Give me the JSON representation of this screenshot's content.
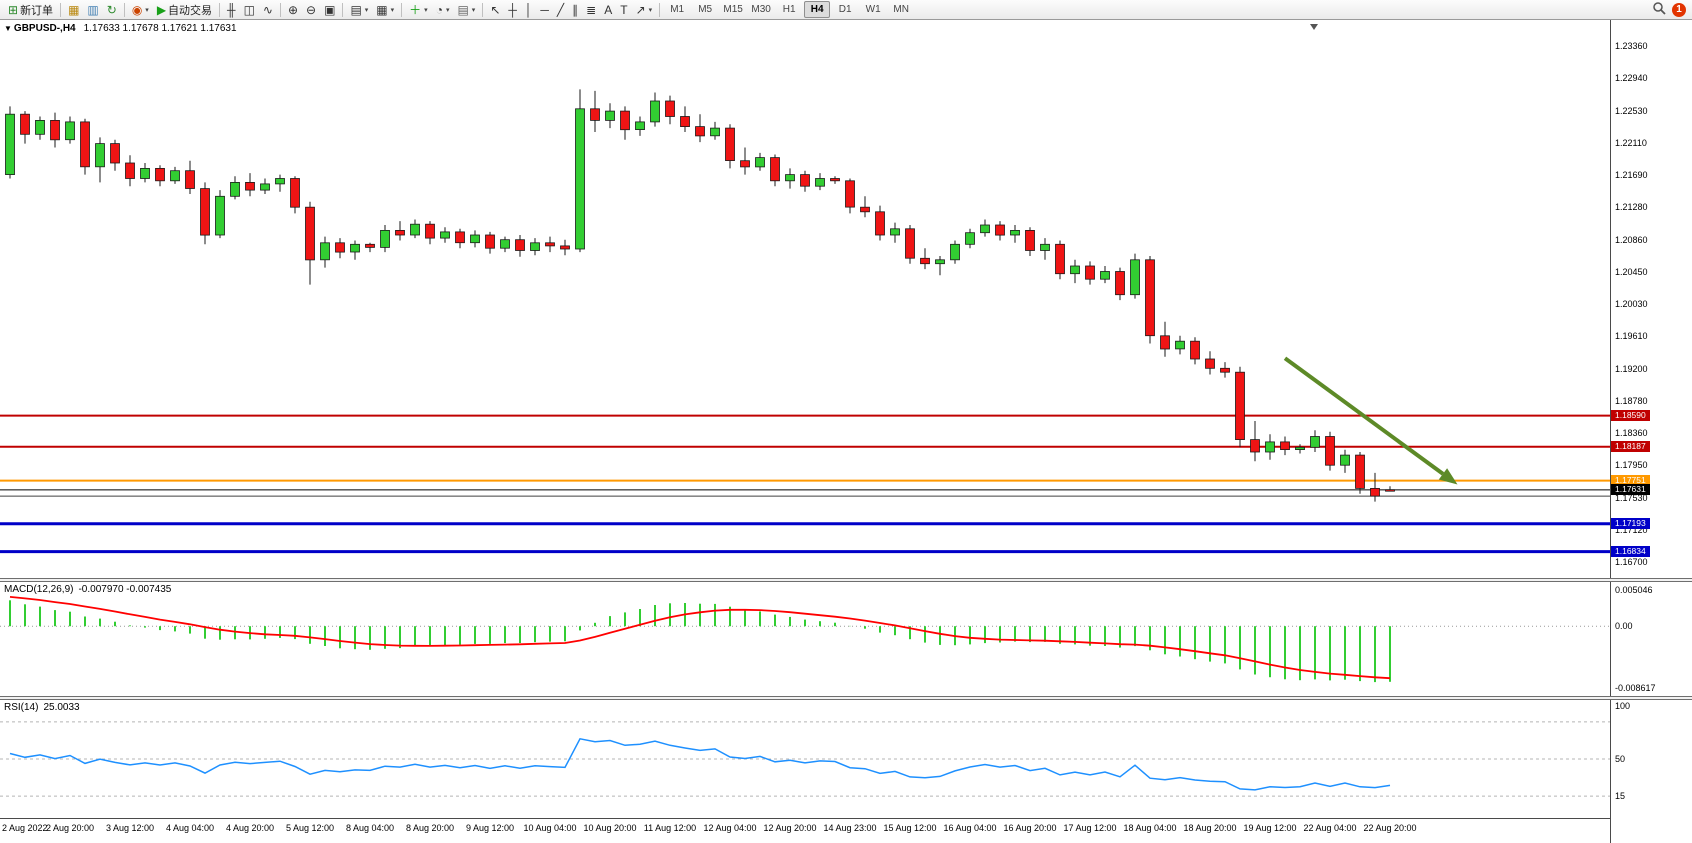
{
  "toolbar": {
    "groups": [
      {
        "name": "orders",
        "items": [
          {
            "name": "new-order-button",
            "glyph": "⊞",
            "color": "#2e8b2e",
            "label": "新订单"
          }
        ]
      },
      {
        "name": "panels",
        "items": [
          {
            "name": "charts-button",
            "glyph": "▦",
            "color": "#b8860b"
          },
          {
            "name": "profiles-button",
            "glyph": "▥",
            "color": "#4682b4"
          },
          {
            "name": "refresh-button",
            "glyph": "↻",
            "color": "#2e8b2e"
          }
        ]
      },
      {
        "name": "trading",
        "items": [
          {
            "name": "new-chart-button",
            "glyph": "◉",
            "color": "#cc4400",
            "caret": true
          },
          {
            "name": "autotrading-button",
            "glyph": "▶",
            "color": "#18a018",
            "label": "自动交易"
          }
        ]
      },
      {
        "name": "chart-types",
        "items": [
          {
            "name": "bar-chart-button",
            "glyph": "╫",
            "color": "#333333"
          },
          {
            "name": "candlestick-chart-button",
            "glyph": "◫",
            "color": "#333333"
          },
          {
            "name": "line-chart-button",
            "glyph": "∿",
            "color": "#333333"
          }
        ]
      },
      {
        "name": "zoom",
        "items": [
          {
            "name": "zoom-in-button",
            "glyph": "⊕",
            "color": "#333333"
          },
          {
            "name": "zoom-out-button",
            "glyph": "⊖",
            "color": "#333333"
          },
          {
            "name": "tile-windows-button",
            "glyph": "▣",
            "color": "#333333"
          }
        ]
      },
      {
        "name": "windows",
        "items": [
          {
            "name": "indicator-list-button",
            "glyph": "▤",
            "color": "#333333",
            "caret": true
          },
          {
            "name": "objects-list-button",
            "glyph": "▦",
            "color": "#333333",
            "caret": true
          }
        ]
      },
      {
        "name": "insert",
        "items": [
          {
            "name": "add-indicator-button",
            "glyph": "＋",
            "color": "#18a018",
            "caret": true
          },
          {
            "name": "periods-button",
            "glyph": "◔",
            "color": "#333333",
            "caret": true
          },
          {
            "name": "template-button",
            "glyph": "▤",
            "color": "#666666",
            "caret": true
          }
        ]
      },
      {
        "name": "tools",
        "items": [
          {
            "name": "cursor-tool-button",
            "glyph": "↖",
            "color": "#333333"
          },
          {
            "name": "crosshair-tool-button",
            "glyph": "┼",
            "color": "#333333"
          },
          {
            "name": "vertical-line-tool-button",
            "glyph": "│",
            "color": "#333333"
          },
          {
            "name": "horizontal-line-tool-button",
            "glyph": "─",
            "color": "#333333"
          },
          {
            "name": "trendline-tool-button",
            "glyph": "╱",
            "color": "#333333"
          },
          {
            "name": "channel-tool-button",
            "glyph": "∥",
            "color": "#333333"
          },
          {
            "name": "fibonacci-tool-button",
            "glyph": "≣",
            "color": "#333333"
          },
          {
            "name": "text-tool-button",
            "glyph": "A",
            "color": "#333333"
          },
          {
            "name": "label-tool-button",
            "glyph": "T",
            "color": "#333333"
          },
          {
            "name": "arrows-tool-button",
            "glyph": "↗",
            "color": "#333333",
            "caret": true
          }
        ]
      }
    ],
    "timeframes": {
      "items": [
        "M1",
        "M5",
        "M15",
        "M30",
        "H1",
        "H4",
        "D1",
        "W1",
        "MN"
      ],
      "active": "H4"
    },
    "notification_count": "1"
  },
  "chart": {
    "symbol_period": "GBPUSD-,H4",
    "ohlc_text": "1.17633 1.17678 1.17621 1.17631"
  },
  "chart_data": {
    "type": "candlestick",
    "title": "GBPUSD-,H4",
    "symbol": "GBPUSD",
    "period": "H4",
    "ohlc_current": {
      "open": 1.17633,
      "high": 1.17678,
      "low": 1.17621,
      "close": 1.17631
    },
    "price_axis": {
      "top": 1.2336,
      "bottom": 1.167,
      "ticks": [
        "1.23360",
        "1.22940",
        "1.22530",
        "1.22110",
        "1.21690",
        "1.21280",
        "1.20860",
        "1.20450",
        "1.20030",
        "1.19610",
        "1.19200",
        "1.18780",
        "1.18360",
        "1.17950",
        "1.17530",
        "1.17120",
        "1.16700"
      ]
    },
    "time_labels": [
      "2 Aug 2022",
      "2 Aug 20:00",
      "3 Aug 12:00",
      "4 Aug 04:00",
      "4 Aug 20:00",
      "5 Aug 12:00",
      "8 Aug 04:00",
      "8 Aug 20:00",
      "9 Aug 12:00",
      "10 Aug 04:00",
      "10 Aug 20:00",
      "11 Aug 12:00",
      "12 Aug 04:00",
      "12 Aug 20:00",
      "14 Aug 23:00",
      "15 Aug 12:00",
      "16 Aug 04:00",
      "16 Aug 20:00",
      "17 Aug 12:00",
      "18 Aug 04:00",
      "18 Aug 20:00",
      "19 Aug 12:00",
      "22 Aug 04:00",
      "22 Aug 20:00"
    ],
    "candles": [
      [
        1.217,
        1.2258,
        1.2165,
        1.2248
      ],
      [
        1.2248,
        1.2252,
        1.221,
        1.2222
      ],
      [
        1.2222,
        1.2245,
        1.2215,
        1.224
      ],
      [
        1.224,
        1.225,
        1.2205,
        1.2215
      ],
      [
        1.2215,
        1.2245,
        1.221,
        1.2238
      ],
      [
        1.2238,
        1.2242,
        1.217,
        1.218
      ],
      [
        1.218,
        1.2218,
        1.216,
        1.221
      ],
      [
        1.221,
        1.2215,
        1.2175,
        1.2185
      ],
      [
        1.2185,
        1.2195,
        1.2155,
        1.2165
      ],
      [
        1.2165,
        1.2185,
        1.216,
        1.2178
      ],
      [
        1.2178,
        1.2182,
        1.2155,
        1.2162
      ],
      [
        1.2162,
        1.218,
        1.2158,
        1.2175
      ],
      [
        1.2175,
        1.2188,
        1.2145,
        1.2152
      ],
      [
        1.2152,
        1.216,
        1.208,
        1.2092
      ],
      [
        1.2092,
        1.215,
        1.2088,
        1.2142
      ],
      [
        1.2142,
        1.2168,
        1.2138,
        1.216
      ],
      [
        1.216,
        1.2172,
        1.2142,
        1.215
      ],
      [
        1.215,
        1.2165,
        1.2145,
        1.2158
      ],
      [
        1.2158,
        1.217,
        1.2148,
        1.2165
      ],
      [
        1.2165,
        1.2168,
        1.212,
        1.2128
      ],
      [
        1.2128,
        1.2135,
        1.2028,
        1.206
      ],
      [
        1.206,
        1.209,
        1.205,
        1.2082
      ],
      [
        1.2082,
        1.2088,
        1.2062,
        1.207
      ],
      [
        1.207,
        1.2085,
        1.206,
        1.208
      ],
      [
        1.208,
        1.2082,
        1.207,
        1.2076
      ],
      [
        1.2076,
        1.2105,
        1.207,
        1.2098
      ],
      [
        1.2098,
        1.211,
        1.2085,
        1.2092
      ],
      [
        1.2092,
        1.2112,
        1.2088,
        1.2106
      ],
      [
        1.2106,
        1.211,
        1.208,
        1.2088
      ],
      [
        1.2088,
        1.2102,
        1.2082,
        1.2096
      ],
      [
        1.2096,
        1.21,
        1.2075,
        1.2082
      ],
      [
        1.2082,
        1.2098,
        1.2076,
        1.2092
      ],
      [
        1.2092,
        1.2096,
        1.2068,
        1.2075
      ],
      [
        1.2075,
        1.209,
        1.207,
        1.2086
      ],
      [
        1.2086,
        1.2092,
        1.2064,
        1.2072
      ],
      [
        1.2072,
        1.2088,
        1.2066,
        1.2082
      ],
      [
        1.2082,
        1.209,
        1.207,
        1.2078
      ],
      [
        1.2078,
        1.2086,
        1.2066,
        1.2074
      ],
      [
        1.2074,
        1.228,
        1.207,
        1.2255
      ],
      [
        1.2255,
        1.2278,
        1.2225,
        1.224
      ],
      [
        1.224,
        1.2262,
        1.223,
        1.2252
      ],
      [
        1.2252,
        1.2258,
        1.2215,
        1.2228
      ],
      [
        1.2228,
        1.2245,
        1.222,
        1.2238
      ],
      [
        1.2238,
        1.2276,
        1.2232,
        1.2265
      ],
      [
        1.2265,
        1.2272,
        1.2235,
        1.2245
      ],
      [
        1.2245,
        1.2258,
        1.2225,
        1.2232
      ],
      [
        1.2232,
        1.2248,
        1.2212,
        1.222
      ],
      [
        1.222,
        1.2238,
        1.2215,
        1.223
      ],
      [
        1.223,
        1.2235,
        1.2178,
        1.2188
      ],
      [
        1.2188,
        1.2205,
        1.217,
        1.218
      ],
      [
        1.218,
        1.2198,
        1.2175,
        1.2192
      ],
      [
        1.2192,
        1.2196,
        1.2155,
        1.2162
      ],
      [
        1.2162,
        1.2178,
        1.2152,
        1.217
      ],
      [
        1.217,
        1.2175,
        1.2148,
        1.2155
      ],
      [
        1.2155,
        1.2172,
        1.215,
        1.2165
      ],
      [
        1.2165,
        1.2168,
        1.2158,
        1.2162
      ],
      [
        1.2162,
        1.2165,
        1.212,
        1.2128
      ],
      [
        1.2128,
        1.2142,
        1.2115,
        1.2122
      ],
      [
        1.2122,
        1.213,
        1.2085,
        1.2092
      ],
      [
        1.2092,
        1.2108,
        1.2082,
        1.21
      ],
      [
        1.21,
        1.2105,
        1.2055,
        1.2062
      ],
      [
        1.2062,
        1.2075,
        1.2048,
        1.2055
      ],
      [
        1.2055,
        1.2065,
        1.204,
        1.206
      ],
      [
        1.206,
        1.2085,
        1.2055,
        1.208
      ],
      [
        1.208,
        1.21,
        1.2075,
        1.2095
      ],
      [
        1.2095,
        1.2112,
        1.209,
        1.2105
      ],
      [
        1.2105,
        1.211,
        1.2085,
        1.2092
      ],
      [
        1.2092,
        1.2105,
        1.2082,
        1.2098
      ],
      [
        1.2098,
        1.2102,
        1.2065,
        1.2072
      ],
      [
        1.2072,
        1.2088,
        1.206,
        1.208
      ],
      [
        1.208,
        1.2085,
        1.2035,
        1.2042
      ],
      [
        1.2042,
        1.206,
        1.203,
        1.2052
      ],
      [
        1.2052,
        1.2058,
        1.2028,
        1.2035
      ],
      [
        1.2035,
        1.2052,
        1.203,
        1.2045
      ],
      [
        1.2045,
        1.205,
        1.2008,
        1.2015
      ],
      [
        1.2015,
        1.2068,
        1.201,
        1.206
      ],
      [
        1.206,
        1.2065,
        1.1952,
        1.1962
      ],
      [
        1.1962,
        1.198,
        1.1935,
        1.1945
      ],
      [
        1.1945,
        1.1962,
        1.1938,
        1.1955
      ],
      [
        1.1955,
        1.196,
        1.1925,
        1.1932
      ],
      [
        1.1932,
        1.1942,
        1.1912,
        1.192
      ],
      [
        1.192,
        1.1928,
        1.1908,
        1.1915
      ],
      [
        1.1915,
        1.1922,
        1.1818,
        1.1828
      ],
      [
        1.1828,
        1.1852,
        1.18,
        1.1812
      ],
      [
        1.1812,
        1.1835,
        1.1802,
        1.1825
      ],
      [
        1.1825,
        1.1832,
        1.1808,
        1.1815
      ],
      [
        1.1815,
        1.1822,
        1.181,
        1.1818
      ],
      [
        1.1818,
        1.184,
        1.1812,
        1.1832
      ],
      [
        1.1832,
        1.1838,
        1.1788,
        1.1795
      ],
      [
        1.1795,
        1.1815,
        1.1785,
        1.1808
      ],
      [
        1.1808,
        1.1812,
        1.1758,
        1.1765
      ],
      [
        1.1765,
        1.1785,
        1.1748,
        1.1755
      ],
      [
        1.17633,
        1.17678,
        1.17621,
        1.17631
      ]
    ],
    "hlines": [
      {
        "name": "resistance-line-1",
        "price": 1.1859,
        "color": "#C00000",
        "width": 2,
        "tag": "1.18590",
        "tag_bg": "#C00000"
      },
      {
        "name": "resistance-line-2",
        "price": 1.18187,
        "color": "#C00000",
        "width": 2,
        "tag": "1.18187",
        "tag_bg": "#C00000"
      },
      {
        "name": "pivot-line",
        "price": 1.17751,
        "color": "#FF9900",
        "width": 2,
        "tag": "1.17751",
        "tag_bg": "#FF9900"
      },
      {
        "name": "bid-price-line",
        "price": 1.17631,
        "color": "#000000",
        "width": 1,
        "tag": "1.17631",
        "tag_bg": "#000000"
      },
      {
        "name": "minor-support-line",
        "price": 1.1755,
        "color": "#404040",
        "width": 1,
        "tag": null,
        "tag_bg": null
      },
      {
        "name": "support-line-1",
        "price": 1.17193,
        "color": "#0000C8",
        "width": 3,
        "tag": "1.17193",
        "tag_bg": "#0000C8"
      },
      {
        "name": "support-line-2",
        "price": 1.16834,
        "color": "#0000C8",
        "width": 3,
        "tag": "1.16834",
        "tag_bg": "#0000C8"
      }
    ],
    "arrow": {
      "name": "downtrend-arrow",
      "from_index": 85,
      "from_price": 1.1933,
      "to_index": 96.5,
      "to_price": 1.177,
      "color": "#5D8A27"
    },
    "macd": {
      "label": "MACD(12,26,9)",
      "value_text": "-0.007970 -0.007435",
      "fast": 12,
      "slow": 26,
      "signal": 9,
      "axis_labels": [
        "0.005046",
        "0.00",
        "-0.008617"
      ]
    },
    "rsi": {
      "label": "RSI(14)",
      "value_text": "25.0033",
      "period": 14,
      "axis_labels": [
        "100",
        "50",
        "15"
      ],
      "levels": [
        85,
        50,
        15
      ]
    },
    "colors": {
      "up": "#32CD32",
      "down": "#F01414",
      "wick": "#1a1a1a",
      "macd_hist": "#32CD32",
      "macd_signal": "#FF0000",
      "rsi_line": "#1E90FF",
      "arrow": "#5D8A27"
    }
  }
}
